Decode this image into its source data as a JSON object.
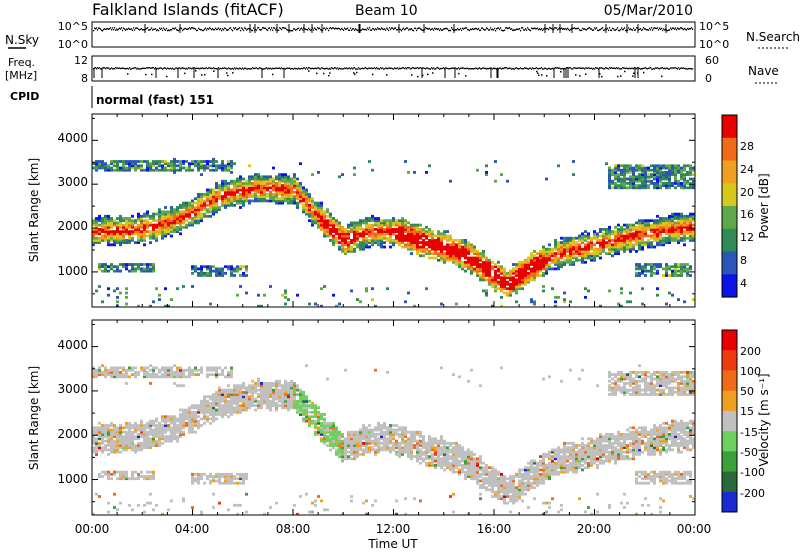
{
  "header": {
    "station": "Falkland Islands (fitACF)",
    "beam": "Beam 10",
    "date": "05/Mar/2010"
  },
  "nsky_panel": {
    "left_label": "N.Sky",
    "right_label": "N.Search",
    "left_ticks": [
      "10^5",
      "10^0"
    ],
    "right_ticks": [
      "10^5",
      "10^0"
    ]
  },
  "freq_panel": {
    "left_label_1": "Freq.",
    "left_label_2": "[MHz]",
    "right_label": "Nave",
    "left_ticks": [
      "12",
      "8"
    ],
    "right_ticks": [
      "60",
      "0"
    ]
  },
  "cpid_panel": {
    "left_label": "CPID",
    "mode_text": "normal (fast) 151"
  },
  "power_panel": {
    "ylabel": "Slant Range [km]",
    "yticks": [
      "4000",
      "3000",
      "2000",
      "1000"
    ],
    "colorbar_label": "Power [dB]",
    "colorbar_ticks": [
      "28",
      "24",
      "20",
      "16",
      "12",
      "8",
      "4"
    ]
  },
  "velocity_panel": {
    "ylabel": "Slant Range [km]",
    "yticks": [
      "4000",
      "3000",
      "2000",
      "1000"
    ],
    "colorbar_label": "Velocity [m s⁻¹]",
    "colorbar_ticks": [
      "200",
      "100",
      "50",
      "15",
      "-15",
      "-50",
      "-100",
      "-200"
    ]
  },
  "x_axis": {
    "xlabel": "Time UT",
    "xticks": [
      "00:00",
      "04:00",
      "08:00",
      "12:00",
      "16:00",
      "20:00",
      "00:00"
    ]
  },
  "colors": {
    "power_scale": [
      "#0a14e6",
      "#2a56b8",
      "#2f8a55",
      "#5fa84a",
      "#d8c81e",
      "#f0a020",
      "#f06a18",
      "#e60000"
    ],
    "velocity_scale": [
      "#1a2ad0",
      "#2a6a3a",
      "#3aa03a",
      "#6fd060",
      "#c0c0c0",
      "#f0a020",
      "#f06a18",
      "#f03a10",
      "#e60000"
    ]
  },
  "chart_data": [
    {
      "type": "scatter",
      "title": "N.Sky / N.Search",
      "x": [
        0,
        24
      ],
      "xlim": [
        0,
        24
      ],
      "ylim": [
        0,
        5
      ],
      "yscale": "log"
    },
    {
      "type": "scatter",
      "title": "Freq. / Nave",
      "xlim": [
        0,
        24
      ],
      "ylim_freq": [
        8,
        12
      ],
      "ylim_nave": [
        0,
        60
      ]
    },
    {
      "type": "heatmap",
      "quantity": "Power [dB]",
      "xlim": [
        0,
        24
      ],
      "ylim": [
        200,
        4600
      ],
      "color_range": [
        0,
        32
      ],
      "echo_band": {
        "hours": [
          0,
          2,
          3.5,
          5,
          6.5,
          8,
          9.2,
          10,
          11,
          12,
          13,
          14,
          15,
          16,
          16.5,
          17.5,
          18.5,
          20,
          21.5,
          23,
          24
        ],
        "range_km": [
          1900,
          1950,
          2200,
          2700,
          2900,
          2850,
          2100,
          1700,
          1900,
          1900,
          1700,
          1550,
          1300,
          900,
          700,
          1100,
          1400,
          1600,
          1800,
          1950,
          2000
        ]
      },
      "secondary_patches": [
        {
          "hours": [
            0.2,
            2.5
          ],
          "range_km": [
            1000,
            1150
          ]
        },
        {
          "hours": [
            3.9,
            6.1
          ],
          "range_km": [
            900,
            1100
          ]
        },
        {
          "hours": [
            21.5,
            23.8
          ],
          "range_km": [
            900,
            1150
          ]
        },
        {
          "hours": [
            0,
            5.5
          ],
          "range_km": [
            3300,
            3500
          ]
        },
        {
          "hours": [
            20.5,
            24
          ],
          "range_km": [
            2900,
            3400
          ]
        }
      ]
    },
    {
      "type": "heatmap",
      "quantity": "Velocity [m s⁻¹]",
      "xlim": [
        0,
        24
      ],
      "ylim": [
        200,
        4600
      ],
      "color_range": [
        -250,
        250
      ],
      "dominant_value_range": [
        -15,
        15
      ]
    }
  ]
}
